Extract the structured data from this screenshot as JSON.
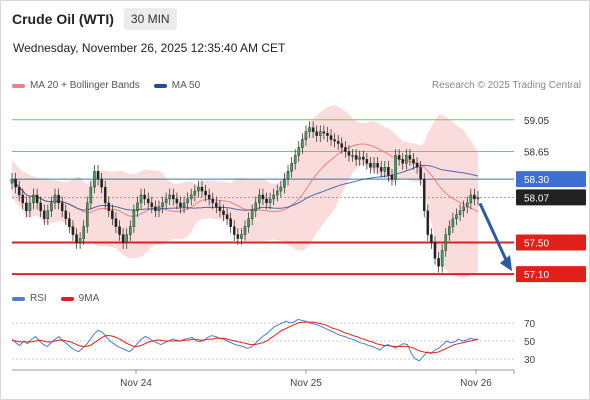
{
  "header": {
    "title": "Crude Oil (WTI)",
    "timeframe": "30 MIN"
  },
  "datetime": "Wednesday, November 26, 2025 12:35:40 AM CET",
  "legend": {
    "ma20": "MA 20 + Bollinger Bands",
    "ma50": "MA 50"
  },
  "credit": "Research © 2025 Trading Central",
  "rsi_legend": {
    "rsi": "RSI",
    "ma": "9MA"
  },
  "colors": {
    "ma20": "#f08080",
    "ma50": "#1f4e96",
    "band": "#f9d3d3",
    "rsi": "#4a7fd6",
    "rsi_ma": "#e0201a",
    "support": "#e0201a",
    "current": "#222222",
    "resist_blue": "#3b6fd1",
    "resist_green": "#7fc06a",
    "arrow": "#2c5aa0"
  },
  "chart_data": [
    {
      "type": "candlestick",
      "title": "Crude Oil (WTI)",
      "timeframe": "30 MIN",
      "x_labels": [
        "Nov 24",
        "Nov 25",
        "Nov 26"
      ],
      "ylim": [
        56.9,
        59.3
      ],
      "levels": [
        {
          "value": 59.05,
          "label": "59.05",
          "kind": "resistance"
        },
        {
          "value": 58.65,
          "label": "58.65",
          "kind": "resistance"
        },
        {
          "value": 58.3,
          "label": "58.30",
          "kind": "pivot"
        },
        {
          "value": 58.07,
          "label": "58.07",
          "kind": "current"
        },
        {
          "value": 57.5,
          "label": "57.50",
          "kind": "support"
        },
        {
          "value": 57.1,
          "label": "57.10",
          "kind": "target"
        }
      ],
      "ma_labels": [
        "MA 20 + Bollinger Bands",
        "MA 50"
      ],
      "closes": [
        58.3,
        58.2,
        58.1,
        58.0,
        57.9,
        58.0,
        58.1,
        58.0,
        57.9,
        57.8,
        57.9,
        58.0,
        58.1,
        58.0,
        57.9,
        57.8,
        57.7,
        57.6,
        57.5,
        57.55,
        57.7,
        58.0,
        58.2,
        58.4,
        58.3,
        58.2,
        58.0,
        57.9,
        57.8,
        57.7,
        57.6,
        57.5,
        57.6,
        57.7,
        57.9,
        58.0,
        58.1,
        58.05,
        58.0,
        57.95,
        57.9,
        57.95,
        58.0,
        58.05,
        58.1,
        58.05,
        58.0,
        57.95,
        58.0,
        58.05,
        58.1,
        58.15,
        58.2,
        58.15,
        58.1,
        58.05,
        58.0,
        57.95,
        57.9,
        57.85,
        57.8,
        57.7,
        57.6,
        57.55,
        57.6,
        57.7,
        57.8,
        57.9,
        58.0,
        58.1,
        58.05,
        58.0,
        58.05,
        58.1,
        58.15,
        58.2,
        58.3,
        58.4,
        58.5,
        58.6,
        58.7,
        58.8,
        58.9,
        58.95,
        58.9,
        58.85,
        58.9,
        58.88,
        58.85,
        58.8,
        58.78,
        58.75,
        58.7,
        58.65,
        58.6,
        58.6,
        58.55,
        58.58,
        58.55,
        58.5,
        58.45,
        58.5,
        58.45,
        58.4,
        58.45,
        58.35,
        58.3,
        58.6,
        58.55,
        58.5,
        58.6,
        58.55,
        58.5,
        58.45,
        58.3,
        57.9,
        57.6,
        57.5,
        57.3,
        57.2,
        57.4,
        57.6,
        57.7,
        57.8,
        57.85,
        57.9,
        57.95,
        58.0,
        58.1,
        58.05,
        58.07
      ]
    },
    {
      "type": "line",
      "title": "RSI",
      "ylim": [
        20,
        80
      ],
      "yticks": [
        30,
        50,
        70
      ],
      "series": [
        {
          "name": "RSI",
          "values": [
            52,
            48,
            45,
            50,
            47,
            52,
            55,
            50,
            46,
            44,
            48,
            52,
            55,
            50,
            47,
            43,
            40,
            38,
            42,
            46,
            52,
            58,
            62,
            60,
            55,
            50,
            47,
            44,
            42,
            40,
            38,
            42,
            47,
            52,
            55,
            53,
            50,
            48,
            46,
            48,
            50,
            52,
            51,
            50,
            52,
            53,
            54,
            50,
            49,
            51,
            54,
            56,
            55,
            53,
            52,
            50,
            48,
            46,
            45,
            44,
            42,
            43,
            47,
            51,
            55,
            58,
            62,
            66,
            68,
            70,
            72,
            70,
            71,
            74,
            73,
            72,
            70,
            69,
            68,
            66,
            64,
            62,
            60,
            58,
            56,
            55,
            53,
            52,
            50,
            48,
            47,
            45,
            44,
            42,
            40,
            44,
            46,
            44,
            42,
            45,
            47,
            46,
            36,
            30,
            28,
            33,
            38,
            36,
            40,
            42,
            46,
            50,
            48,
            49,
            52,
            50,
            51,
            53,
            52,
            52
          ]
        },
        {
          "name": "9MA",
          "values": [
            51,
            50,
            49,
            49,
            49,
            49,
            50,
            51,
            50,
            49,
            49,
            50,
            51,
            51,
            50,
            49,
            47,
            45,
            44,
            44,
            45,
            48,
            51,
            54,
            56,
            56,
            55,
            53,
            51,
            48,
            46,
            44,
            44,
            45,
            47,
            49,
            50,
            51,
            51,
            50,
            50,
            50,
            50,
            50,
            51,
            51,
            52,
            52,
            51,
            51,
            52,
            52,
            53,
            53,
            53,
            52,
            51,
            50,
            49,
            48,
            47,
            46,
            46,
            47,
            48,
            50,
            53,
            56,
            59,
            62,
            64,
            66,
            68,
            70,
            71,
            71,
            71,
            71,
            70,
            69,
            68,
            66,
            64,
            63,
            61,
            59,
            58,
            56,
            55,
            53,
            52,
            50,
            49,
            47,
            46,
            45,
            45,
            44,
            44,
            44,
            44,
            44,
            43,
            41,
            39,
            38,
            37,
            37,
            37,
            38,
            40,
            42,
            44,
            46,
            47,
            48,
            49,
            50,
            51,
            52
          ]
        }
      ]
    }
  ]
}
